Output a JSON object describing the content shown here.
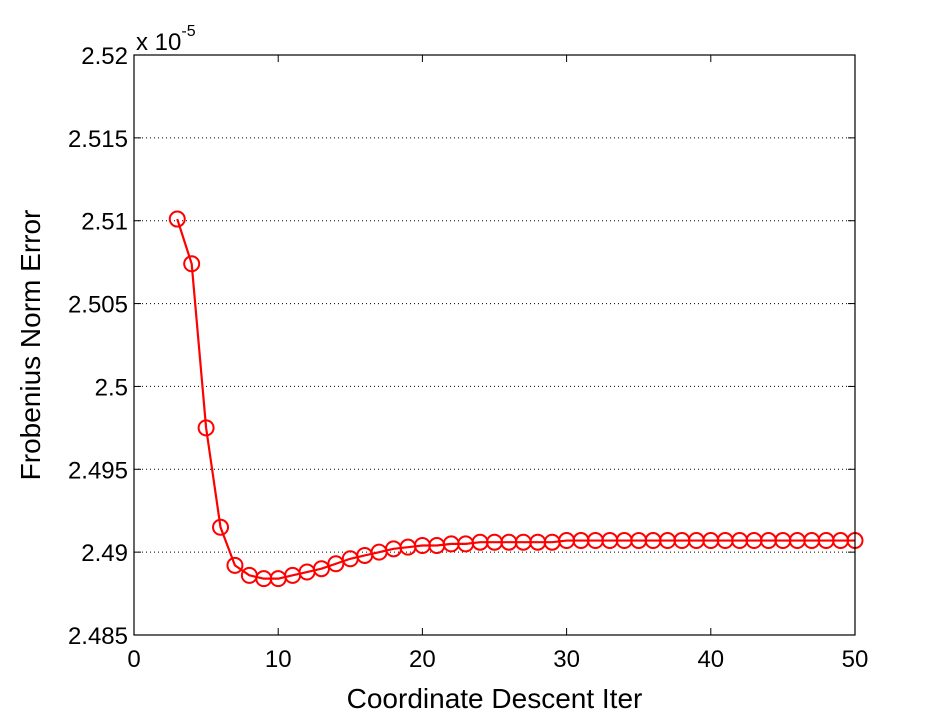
{
  "chart_data": {
    "type": "line",
    "title": "",
    "xlabel": "Coordinate Descent Iter",
    "ylabel": "Frobenius Norm Error",
    "y_multiplier_base": "x 10",
    "y_multiplier_exponent": "-5",
    "xlim": [
      0,
      50
    ],
    "ylim": [
      2.485,
      2.52
    ],
    "x_ticks": [
      0,
      10,
      20,
      30,
      40,
      50
    ],
    "x_tick_labels": [
      "0",
      "10",
      "20",
      "30",
      "40",
      "50"
    ],
    "y_ticks": [
      2.485,
      2.49,
      2.495,
      2.5,
      2.505,
      2.51,
      2.515,
      2.52
    ],
    "y_tick_labels": [
      "2.485",
      "2.49",
      "2.495",
      "2.5",
      "2.505",
      "2.51",
      "2.515",
      "2.52"
    ],
    "grid": "horizontal dotted",
    "legend": "none",
    "series": [
      {
        "color": "#ff0000",
        "marker": "circle",
        "x": [
          3,
          4,
          5,
          6,
          7,
          8,
          9,
          10,
          11,
          12,
          13,
          14,
          15,
          16,
          17,
          18,
          19,
          20,
          21,
          22,
          23,
          24,
          25,
          26,
          27,
          28,
          29,
          30,
          31,
          32,
          33,
          34,
          35,
          36,
          37,
          38,
          39,
          40,
          41,
          42,
          43,
          44,
          45,
          46,
          47,
          48,
          49,
          50
        ],
        "y": [
          2.5101,
          2.5074,
          2.4975,
          2.4915,
          2.4892,
          2.4886,
          2.4884,
          2.4884,
          2.4886,
          2.4888,
          2.489,
          2.4893,
          2.4896,
          2.4898,
          2.49,
          2.4902,
          2.4903,
          2.4904,
          2.4904,
          2.4905,
          2.4905,
          2.4906,
          2.4906,
          2.4906,
          2.4906,
          2.4906,
          2.4906,
          2.4907,
          2.4907,
          2.4907,
          2.4907,
          2.4907,
          2.4907,
          2.4907,
          2.4907,
          2.4907,
          2.4907,
          2.4907,
          2.4907,
          2.4907,
          2.4907,
          2.4907,
          2.4907,
          2.4907,
          2.4907,
          2.4907,
          2.4907,
          2.4907
        ]
      }
    ]
  }
}
